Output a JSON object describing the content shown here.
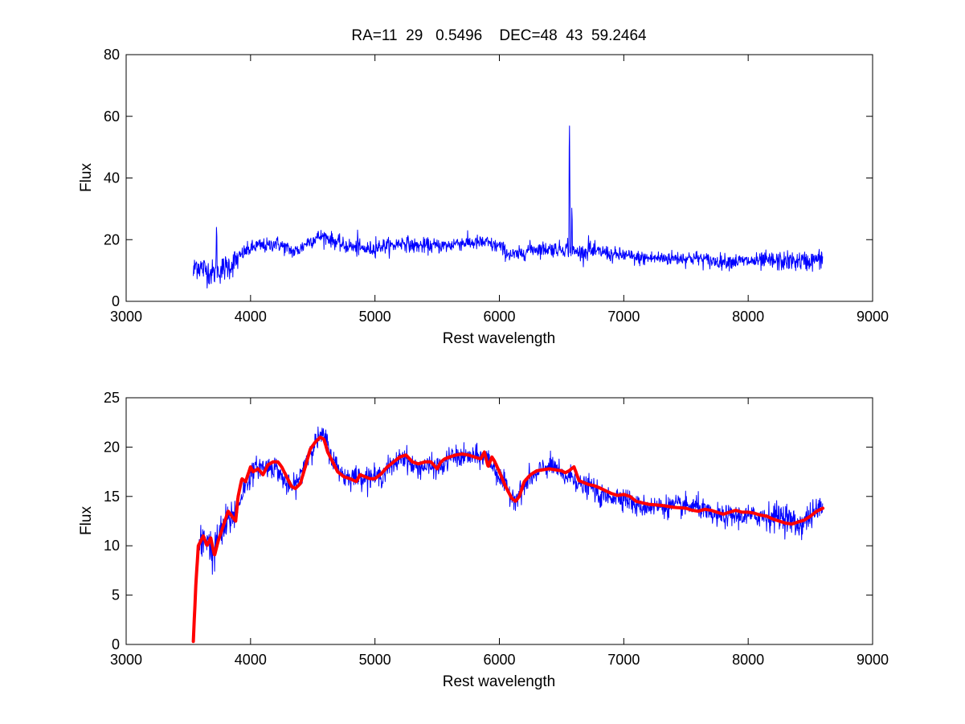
{
  "figure_title": "RA=11  29   0.5496    DEC=48  43  59.2464",
  "chart_data": [
    {
      "type": "line",
      "title": "RA=11  29   0.5496    DEC=48  43  59.2464",
      "xlabel": "Rest wavelength",
      "ylabel": "Flux",
      "xlim": [
        3000,
        9000
      ],
      "ylim": [
        0,
        80
      ],
      "xticks": [
        3000,
        4000,
        5000,
        6000,
        7000,
        8000,
        9000
      ],
      "yticks": [
        0,
        20,
        40,
        60,
        80
      ],
      "grid": false,
      "series": [
        {
          "color": "#0000ff",
          "noise": 2.0,
          "x": [
            3540,
            3560,
            3600,
            3650,
            3700,
            3750,
            3800,
            3850,
            3900,
            3950,
            4000,
            4050,
            4100,
            4150,
            4200,
            4250,
            4300,
            4350,
            4400,
            4450,
            4500,
            4550,
            4600,
            4650,
            4700,
            4750,
            4800,
            4850,
            4900,
            4950,
            5000,
            5050,
            5100,
            5150,
            5200,
            5250,
            5300,
            5350,
            5400,
            5450,
            5500,
            5550,
            5600,
            5650,
            5700,
            5750,
            5800,
            5850,
            5900,
            5950,
            6000,
            6050,
            6100,
            6150,
            6200,
            6250,
            6300,
            6350,
            6400,
            6450,
            6500,
            6550,
            6600,
            6650,
            6700,
            6750,
            6800,
            6850,
            6900,
            6950,
            7000,
            7100,
            7200,
            7300,
            7400,
            7500,
            7600,
            7700,
            7800,
            7900,
            8000,
            8100,
            8200,
            8300,
            8400,
            8500,
            8600
          ],
          "y": [
            9,
            12,
            11,
            10,
            9,
            10,
            11,
            12,
            14,
            16,
            17,
            18,
            18,
            18,
            19,
            18,
            17,
            16,
            17,
            19,
            20,
            21,
            21,
            20,
            19,
            18,
            18,
            17,
            17,
            17,
            17,
            18,
            18,
            18,
            19,
            19,
            18,
            18,
            18,
            18,
            18,
            18,
            18,
            19,
            19,
            19,
            19,
            19,
            19,
            18,
            18,
            16,
            15,
            15,
            16,
            17,
            17,
            17,
            17,
            17,
            17,
            17,
            16,
            16,
            16,
            16,
            16,
            16,
            15,
            15,
            15,
            14,
            14,
            14,
            14,
            14,
            14,
            13,
            13,
            13,
            13,
            13,
            13,
            13,
            13,
            13,
            14
          ],
          "spikes": [
            {
              "x": 3727,
              "y": 27
            },
            {
              "x": 4861,
              "y": 26
            },
            {
              "x": 5007,
              "y": 21
            },
            {
              "x": 6548,
              "y": 23
            },
            {
              "x": 6563,
              "y": 64
            },
            {
              "x": 6583,
              "y": 34
            },
            {
              "x": 6716,
              "y": 24
            },
            {
              "x": 6731,
              "y": 22
            }
          ]
        }
      ]
    },
    {
      "type": "line",
      "xlabel": "Rest wavelength",
      "ylabel": "Flux",
      "xlim": [
        3000,
        9000
      ],
      "ylim": [
        0,
        25
      ],
      "xticks": [
        3000,
        4000,
        5000,
        6000,
        7000,
        8000,
        9000
      ],
      "yticks": [
        0,
        5,
        10,
        15,
        20,
        25
      ],
      "grid": false,
      "series": [
        {
          "color": "#0000ff",
          "noise": 0.9,
          "x": [
            3540,
            3570,
            3600,
            3650,
            3700,
            3750,
            3800,
            3850,
            3900,
            3950,
            4000,
            4050,
            4100,
            4150,
            4200,
            4250,
            4300,
            4350,
            4400,
            4450,
            4500,
            4550,
            4600,
            4650,
            4700,
            4750,
            4800,
            4850,
            4900,
            4950,
            5000,
            5050,
            5100,
            5150,
            5200,
            5250,
            5300,
            5350,
            5400,
            5450,
            5500,
            5550,
            5600,
            5650,
            5700,
            5750,
            5800,
            5850,
            5900,
            5950,
            6000,
            6050,
            6100,
            6150,
            6200,
            6250,
            6300,
            6350,
            6400,
            6450,
            6500,
            6550,
            6600,
            6650,
            6700,
            6750,
            6800,
            6850,
            6900,
            6950,
            7000,
            7100,
            7200,
            7300,
            7400,
            7500,
            7600,
            7700,
            7800,
            7900,
            8000,
            8100,
            8200,
            8300,
            8400,
            8500,
            8600
          ],
          "y": [
            2,
            9,
            10,
            11,
            9,
            11,
            12,
            13,
            14,
            16,
            17,
            18,
            18,
            18,
            18,
            17,
            16,
            16,
            17,
            19,
            20,
            21,
            21,
            19,
            18,
            17,
            17,
            17,
            17,
            17,
            17,
            17,
            18,
            18,
            19,
            19,
            18,
            18,
            18,
            18,
            18,
            18,
            19,
            19,
            19,
            19,
            19,
            19,
            19,
            18,
            17,
            16,
            15,
            15,
            16,
            17,
            17,
            18,
            18,
            18,
            17,
            17,
            17,
            16,
            16,
            16,
            15,
            15,
            15,
            15,
            15,
            14,
            14,
            14,
            14,
            14,
            14,
            13,
            13,
            13,
            13,
            13,
            13,
            13,
            12,
            13,
            14
          ]
        },
        {
          "color": "#ff0000",
          "noise": 0,
          "x": [
            3540,
            3560,
            3580,
            3600,
            3620,
            3650,
            3680,
            3710,
            3740,
            3780,
            3820,
            3850,
            3880,
            3900,
            3930,
            3960,
            4000,
            4020,
            4060,
            4100,
            4140,
            4180,
            4220,
            4250,
            4290,
            4330,
            4360,
            4400,
            4440,
            4480,
            4520,
            4560,
            4590,
            4620,
            4660,
            4700,
            4750,
            4800,
            4850,
            4880,
            4920,
            4960,
            5000,
            5050,
            5100,
            5150,
            5200,
            5250,
            5300,
            5350,
            5400,
            5450,
            5500,
            5530,
            5560,
            5600,
            5650,
            5700,
            5750,
            5800,
            5850,
            5880,
            5910,
            5940,
            5960,
            6000,
            6050,
            6100,
            6130,
            6160,
            6200,
            6250,
            6300,
            6350,
            6400,
            6450,
            6500,
            6530,
            6560,
            6600,
            6640,
            6680,
            6720,
            6760,
            6800,
            6850,
            6900,
            6950,
            7000,
            7050,
            7100,
            7200,
            7300,
            7400,
            7500,
            7550,
            7600,
            7650,
            7700,
            7800,
            7850,
            7900,
            7950,
            8000,
            8050,
            8100,
            8150,
            8200,
            8250,
            8300,
            8350,
            8400,
            8450,
            8500,
            8550,
            8600
          ],
          "y": [
            0.3,
            6,
            10,
            10.5,
            11,
            10,
            10.8,
            9,
            10.5,
            12,
            13.5,
            13,
            12.5,
            15,
            16.8,
            16.5,
            18,
            17.5,
            17.8,
            17.2,
            18.2,
            18.5,
            18.5,
            18,
            17,
            16,
            15.8,
            16.3,
            18,
            19.8,
            20.5,
            21,
            20.8,
            19.5,
            18.5,
            17.5,
            17,
            16.8,
            16.5,
            17.2,
            17,
            16.8,
            16.8,
            17.3,
            18,
            18.5,
            19,
            19.2,
            18.5,
            18.3,
            18.5,
            18.5,
            17.8,
            18.5,
            18.8,
            19,
            19.2,
            19.3,
            19.2,
            19,
            18.8,
            19.5,
            18,
            19,
            18.6,
            17.5,
            16,
            14.8,
            14.5,
            15,
            16.5,
            17.2,
            17.6,
            17.7,
            17.8,
            17.7,
            17.6,
            17.4,
            17.6,
            18,
            16.6,
            16.4,
            16.2,
            16.1,
            15.9,
            15.6,
            15.3,
            15.1,
            15.2,
            15,
            14.5,
            14.2,
            14.1,
            13.9,
            13.8,
            13.6,
            13.5,
            13.7,
            13.6,
            13.2,
            13.4,
            13.6,
            13.4,
            13.4,
            13.3,
            13.1,
            13,
            12.7,
            12.5,
            12.3,
            12.2,
            12.4,
            12.6,
            13,
            13.5,
            13.8
          ]
        }
      ]
    }
  ]
}
